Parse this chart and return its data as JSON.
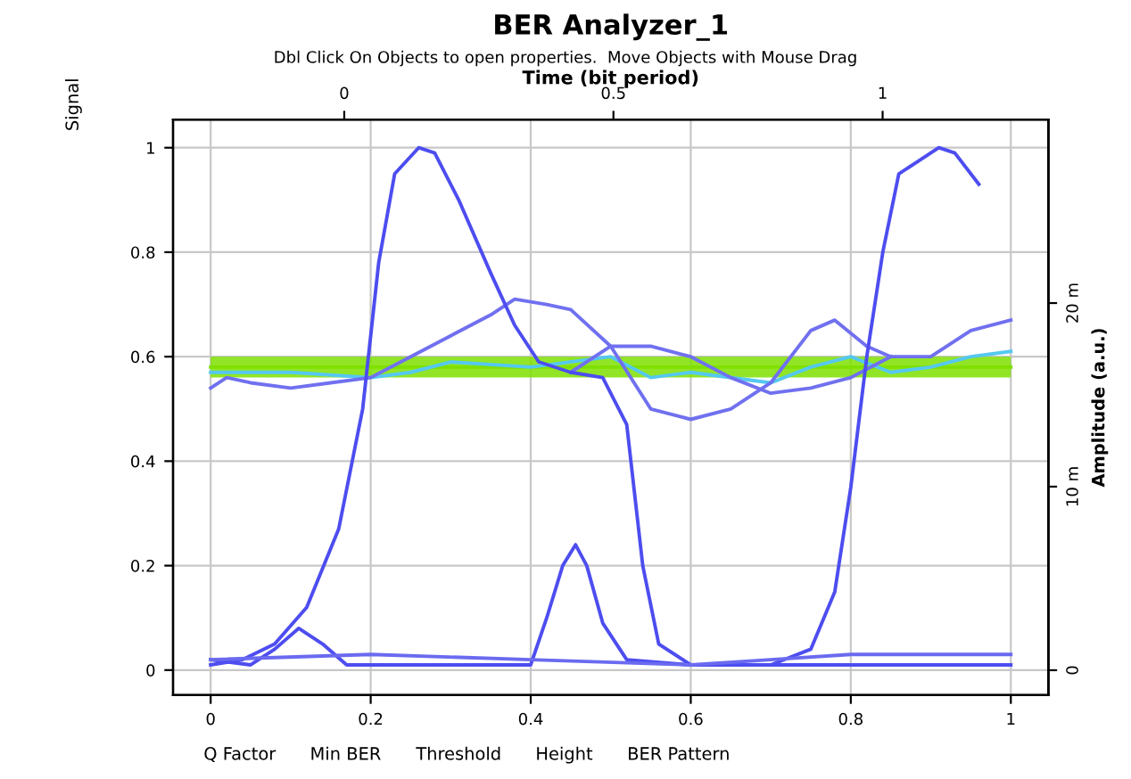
{
  "chart_data": {
    "type": "line",
    "title": "BER Analyzer_1",
    "subtitle": "Dbl Click On Objects to open properties.  Move Objects with Mouse Drag",
    "x2label": "Time (bit period)",
    "y2label": "Amplitude (a.u.)",
    "annotations": [
      "Signal",
      "Q Factor",
      "Min BER",
      "Threshold",
      "Height",
      "BER Pattern"
    ],
    "xlim": [
      -0.047,
      1.047
    ],
    "xticks": [
      0,
      0.2,
      0.4,
      0.6,
      0.8,
      1
    ],
    "x2lim": [
      -0.318,
      1.308
    ],
    "x2ticks": [
      0,
      0.5,
      1
    ],
    "ylim": [
      -0.048,
      1.054
    ],
    "yticks": [
      0,
      0.2,
      0.4,
      0.6,
      0.8,
      1
    ],
    "y2lim": [
      -1.36,
      30
    ],
    "y2ticks": [
      0,
      {
        "value": 10,
        "label": "10 m"
      },
      {
        "value": 20,
        "label": "20 m"
      }
    ],
    "grid": true,
    "marker": "none",
    "line_style": "solid",
    "series": [
      {
        "color": "#7fe000",
        "x": [
          0,
          0.25,
          0.5,
          0.75,
          1
        ],
        "values": [
          0.58,
          0.58,
          0.58,
          0.58,
          0.58
        ],
        "lower": [
          0.56,
          0.56,
          0.56,
          0.56,
          0.56
        ],
        "upper": [
          0.6,
          0.6,
          0.6,
          0.6,
          0.6
        ]
      },
      {
        "color": "#55c8f0",
        "x": [
          0,
          0.1,
          0.2,
          0.25,
          0.3,
          0.4,
          0.5,
          0.55,
          0.6,
          0.7,
          0.75,
          0.8,
          0.85,
          0.9,
          0.95,
          1
        ],
        "values": [
          0.57,
          0.57,
          0.56,
          0.57,
          0.59,
          0.58,
          0.6,
          0.56,
          0.57,
          0.55,
          0.58,
          0.6,
          0.57,
          0.58,
          0.6,
          0.61
        ]
      },
      {
        "color": "#7070f0",
        "x": [
          0,
          0.02,
          0.05,
          0.1,
          0.15,
          0.2,
          0.25,
          0.3,
          0.35,
          0.38,
          0.42,
          0.45,
          0.5,
          0.55,
          0.6,
          0.65,
          0.7,
          0.75,
          0.78,
          0.82,
          0.85,
          0.9,
          0.95,
          1
        ],
        "values": [
          0.54,
          0.56,
          0.55,
          0.54,
          0.55,
          0.56,
          0.6,
          0.64,
          0.68,
          0.71,
          0.7,
          0.69,
          0.62,
          0.5,
          0.48,
          0.5,
          0.55,
          0.65,
          0.67,
          0.62,
          0.6,
          0.6,
          0.65,
          0.67
        ]
      },
      {
        "color": "#7070f0",
        "x": [
          0.45,
          0.5,
          0.55,
          0.6,
          0.65,
          0.7,
          0.75,
          0.8,
          0.85
        ],
        "values": [
          0.57,
          0.62,
          0.62,
          0.6,
          0.56,
          0.53,
          0.54,
          0.56,
          0.6
        ]
      },
      {
        "color": "#4d4df0",
        "x": [
          0,
          0.04,
          0.08,
          0.12,
          0.16,
          0.19,
          0.21,
          0.23,
          0.26,
          0.28,
          0.31,
          0.35,
          0.38,
          0.41,
          0.45,
          0.49,
          0.52,
          0.54,
          0.56,
          0.6,
          0.7,
          0.75,
          0.78,
          0.8,
          0.82,
          0.84,
          0.86,
          0.88,
          0.91,
          0.93,
          0.96
        ],
        "values": [
          0.01,
          0.02,
          0.05,
          0.12,
          0.27,
          0.5,
          0.78,
          0.95,
          1.0,
          0.99,
          0.9,
          0.76,
          0.66,
          0.59,
          0.57,
          0.56,
          0.47,
          0.2,
          0.05,
          0.01,
          0.01,
          0.04,
          0.15,
          0.35,
          0.6,
          0.8,
          0.95,
          0.97,
          1.0,
          0.99,
          0.93
        ]
      },
      {
        "color": "#4d4df0",
        "x": [
          0,
          0.05,
          0.08,
          0.11,
          0.14,
          0.17,
          0.25,
          0.4,
          0.42,
          0.44,
          0.456,
          0.47,
          0.49,
          0.52,
          0.6,
          0.75,
          1
        ],
        "values": [
          0.02,
          0.01,
          0.04,
          0.08,
          0.05,
          0.01,
          0.01,
          0.01,
          0.1,
          0.2,
          0.24,
          0.2,
          0.09,
          0.02,
          0.01,
          0.01,
          0.01
        ]
      },
      {
        "color": "#6a6af0",
        "x": [
          0,
          0.2,
          0.4,
          0.6,
          0.7,
          0.8,
          1
        ],
        "values": [
          0.02,
          0.03,
          0.02,
          0.01,
          0.02,
          0.03,
          0.03
        ]
      }
    ]
  }
}
